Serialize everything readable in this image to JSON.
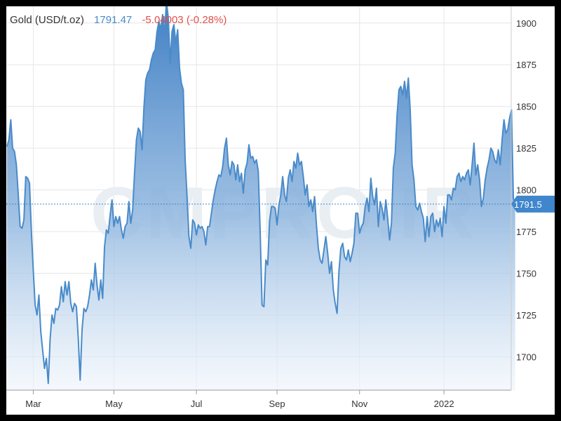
{
  "header": {
    "name": "Gold (USD/t.oz)",
    "price": "1791.47",
    "change": "-5.04003 (-0.28%)"
  },
  "watermark": "CMPRO.IR",
  "colors": {
    "line": "#4a8bc9",
    "area_top": "#3f7fc4",
    "price_text": "#4a8bc9",
    "change_text": "#e0504a",
    "current_marker": "#3f86cc"
  },
  "chart_data": {
    "type": "area",
    "title": "Gold (USD/t.oz)",
    "xlabel": "",
    "ylabel": "",
    "ylim": [
      1680,
      1910
    ],
    "y_ticks": [
      1700,
      1725,
      1750,
      1775,
      1800,
      1825,
      1850,
      1875,
      1900
    ],
    "x_ticks": [
      "Mar",
      "May",
      "Jul",
      "Sep",
      "Nov",
      "2022"
    ],
    "x_tick_index": [
      14,
      57,
      101,
      144,
      188,
      233
    ],
    "x_index_range": [
      0,
      264
    ],
    "grid": true,
    "current_value": 1791.5,
    "current_label": "1791.5",
    "series": [
      {
        "values": [
          1826,
          1830,
          1842,
          1825,
          1823,
          1815,
          1797,
          1778,
          1777,
          1782,
          1808,
          1807,
          1804,
          1775,
          1752,
          1731,
          1725,
          1737,
          1715,
          1704,
          1693,
          1699,
          1684,
          1711,
          1725,
          1720,
          1729,
          1728,
          1731,
          1742,
          1733,
          1745,
          1737,
          1745,
          1732,
          1727,
          1732,
          1730,
          1711,
          1686,
          1716,
          1729,
          1727,
          1730,
          1737,
          1746,
          1740,
          1756,
          1743,
          1734,
          1746,
          1735,
          1766,
          1776,
          1774,
          1785,
          1794,
          1778,
          1784,
          1780,
          1784,
          1776,
          1771,
          1778,
          1780,
          1793,
          1780,
          1788,
          1810,
          1830,
          1837,
          1835,
          1824,
          1849,
          1866,
          1870,
          1872,
          1878,
          1882,
          1884,
          1895,
          1901,
          1896,
          1905,
          1893,
          1913,
          1903,
          1876,
          1895,
          1899,
          1888,
          1896,
          1873,
          1864,
          1860,
          1818,
          1796,
          1772,
          1765,
          1782,
          1780,
          1773,
          1779,
          1777,
          1778,
          1775,
          1767,
          1778,
          1778,
          1786,
          1794,
          1800,
          1805,
          1809,
          1808,
          1814,
          1825,
          1831,
          1815,
          1809,
          1817,
          1815,
          1806,
          1815,
          1805,
          1810,
          1798,
          1812,
          1816,
          1827,
          1819,
          1820,
          1816,
          1818,
          1811,
          1775,
          1731,
          1730,
          1758,
          1755,
          1781,
          1790,
          1790,
          1789,
          1779,
          1791,
          1797,
          1808,
          1797,
          1793,
          1807,
          1812,
          1805,
          1817,
          1813,
          1822,
          1815,
          1817,
          1808,
          1797,
          1803,
          1790,
          1794,
          1787,
          1796,
          1779,
          1765,
          1758,
          1756,
          1764,
          1772,
          1762,
          1750,
          1757,
          1740,
          1732,
          1726,
          1751,
          1765,
          1768,
          1760,
          1758,
          1764,
          1757,
          1762,
          1768,
          1786,
          1786,
          1774,
          1778,
          1780,
          1790,
          1795,
          1787,
          1807,
          1796,
          1791,
          1801,
          1778,
          1793,
          1789,
          1782,
          1794,
          1783,
          1770,
          1780,
          1813,
          1822,
          1845,
          1860,
          1862,
          1857,
          1865,
          1855,
          1867,
          1848,
          1815,
          1806,
          1790,
          1788,
          1792,
          1787,
          1783,
          1769,
          1784,
          1772,
          1784,
          1786,
          1775,
          1782,
          1778,
          1783,
          1772,
          1790,
          1780,
          1797,
          1797,
          1794,
          1801,
          1800,
          1808,
          1810,
          1805,
          1808,
          1806,
          1810,
          1812,
          1803,
          1815,
          1828,
          1809,
          1815,
          1806,
          1790,
          1795,
          1806,
          1813,
          1818,
          1825,
          1823,
          1818,
          1816,
          1824,
          1815,
          1830,
          1842,
          1834,
          1836,
          1843,
          1848,
          1795,
          1791.5
        ]
      }
    ]
  }
}
